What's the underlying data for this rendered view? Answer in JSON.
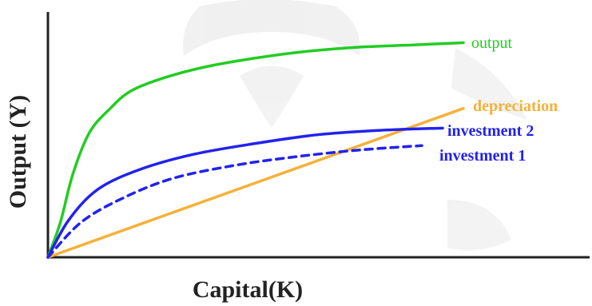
{
  "chart_data": {
    "type": "line",
    "title": "",
    "xlabel": "Capital(K)",
    "ylabel": "Output (Y)",
    "xlim": [
      0,
      100
    ],
    "ylim": [
      0,
      100
    ],
    "grid": false,
    "legend": "inline-right",
    "series": [
      {
        "name": "output",
        "color": "#22cc22",
        "style": "solid",
        "x": [
          0,
          3,
          6,
          10,
          15,
          20,
          28,
          38,
          50,
          62,
          75,
          88,
          100
        ],
        "y": [
          0,
          16,
          38,
          57,
          68,
          76,
          82,
          87,
          91,
          94,
          96,
          97,
          98
        ]
      },
      {
        "name": "depreciation",
        "color": "#f4b13a",
        "style": "solid",
        "x": [
          0,
          100
        ],
        "y": [
          0,
          68
        ]
      },
      {
        "name": "investment 2",
        "color": "#2222ee",
        "style": "solid",
        "x": [
          0,
          5,
          12,
          22,
          35,
          50,
          65,
          80,
          95
        ],
        "y": [
          0,
          17,
          31,
          40,
          47,
          52,
          56,
          58,
          59
        ]
      },
      {
        "name": "investment 1",
        "color": "#2222ee",
        "style": "dashed",
        "x": [
          0,
          8,
          18,
          30,
          45,
          60,
          75,
          90
        ],
        "y": [
          0,
          16,
          27,
          36,
          42,
          46,
          49,
          51
        ]
      }
    ]
  }
}
